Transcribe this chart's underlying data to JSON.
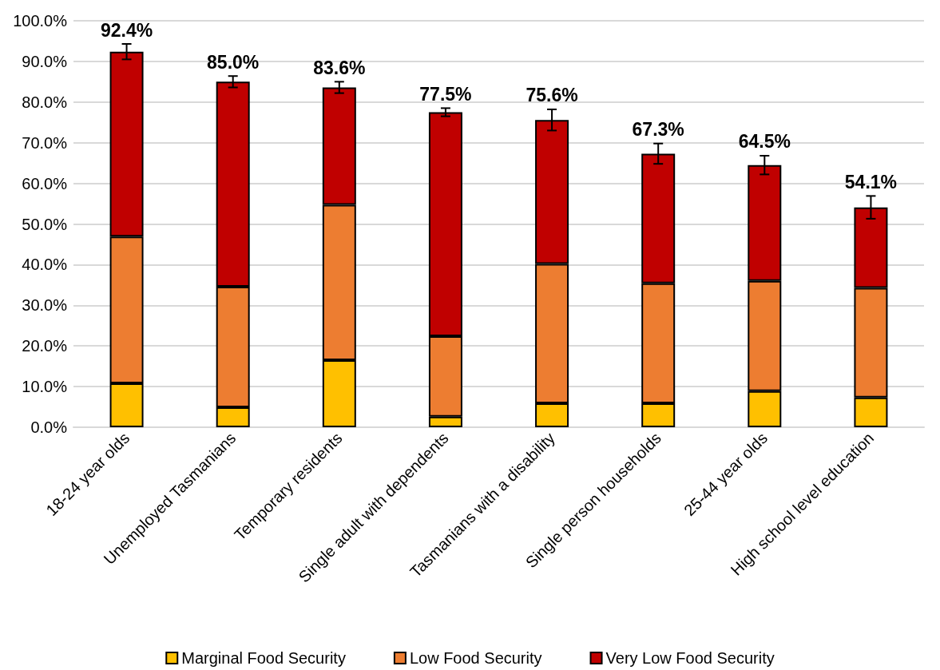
{
  "chart_data": {
    "type": "bar",
    "stacked": true,
    "categories": [
      "18-24 year olds",
      "Unemployed Tasmanians",
      "Temporary residents",
      "Single adult with dependents",
      "Tasmanians with a disability",
      "Single person households",
      "25-44 year olds",
      "High school level education"
    ],
    "series": [
      {
        "name": "Marginal Food Security",
        "color": "#ffc000",
        "values": [
          10.8,
          4.9,
          16.5,
          2.6,
          5.9,
          5.9,
          8.9,
          7.3
        ]
      },
      {
        "name": "Low Food Security",
        "color": "#ed7d31",
        "values": [
          36.1,
          29.7,
          38.2,
          19.8,
          34.3,
          29.5,
          27.1,
          27.0
        ]
      },
      {
        "name": "Very Low Food Security",
        "color": "#c00000",
        "values": [
          45.5,
          50.4,
          28.9,
          55.1,
          35.4,
          31.9,
          28.5,
          19.8
        ],
        "errors": [
          1.9,
          1.4,
          1.4,
          1.0,
          2.6,
          2.5,
          2.3,
          2.8
        ]
      }
    ],
    "totals": [
      "92.4%",
      "85.0%",
      "83.6%",
      "77.5%",
      "75.6%",
      "67.3%",
      "64.5%",
      "54.1%"
    ],
    "ylim": [
      0,
      100
    ],
    "yticks": [
      {
        "value": 0,
        "label": "0.0%"
      },
      {
        "value": 10,
        "label": "10.0%"
      },
      {
        "value": 20,
        "label": "20.0%"
      },
      {
        "value": 30,
        "label": "30.0%"
      },
      {
        "value": 40,
        "label": "40.0%"
      },
      {
        "value": 50,
        "label": "50.0%"
      },
      {
        "value": 60,
        "label": "60.0%"
      },
      {
        "value": 70,
        "label": "70.0%"
      },
      {
        "value": 80,
        "label": "80.0%"
      },
      {
        "value": 90,
        "label": "90.0%"
      },
      {
        "value": 100,
        "label": "100.0%"
      }
    ],
    "grid": "y",
    "legend": "bottom"
  }
}
